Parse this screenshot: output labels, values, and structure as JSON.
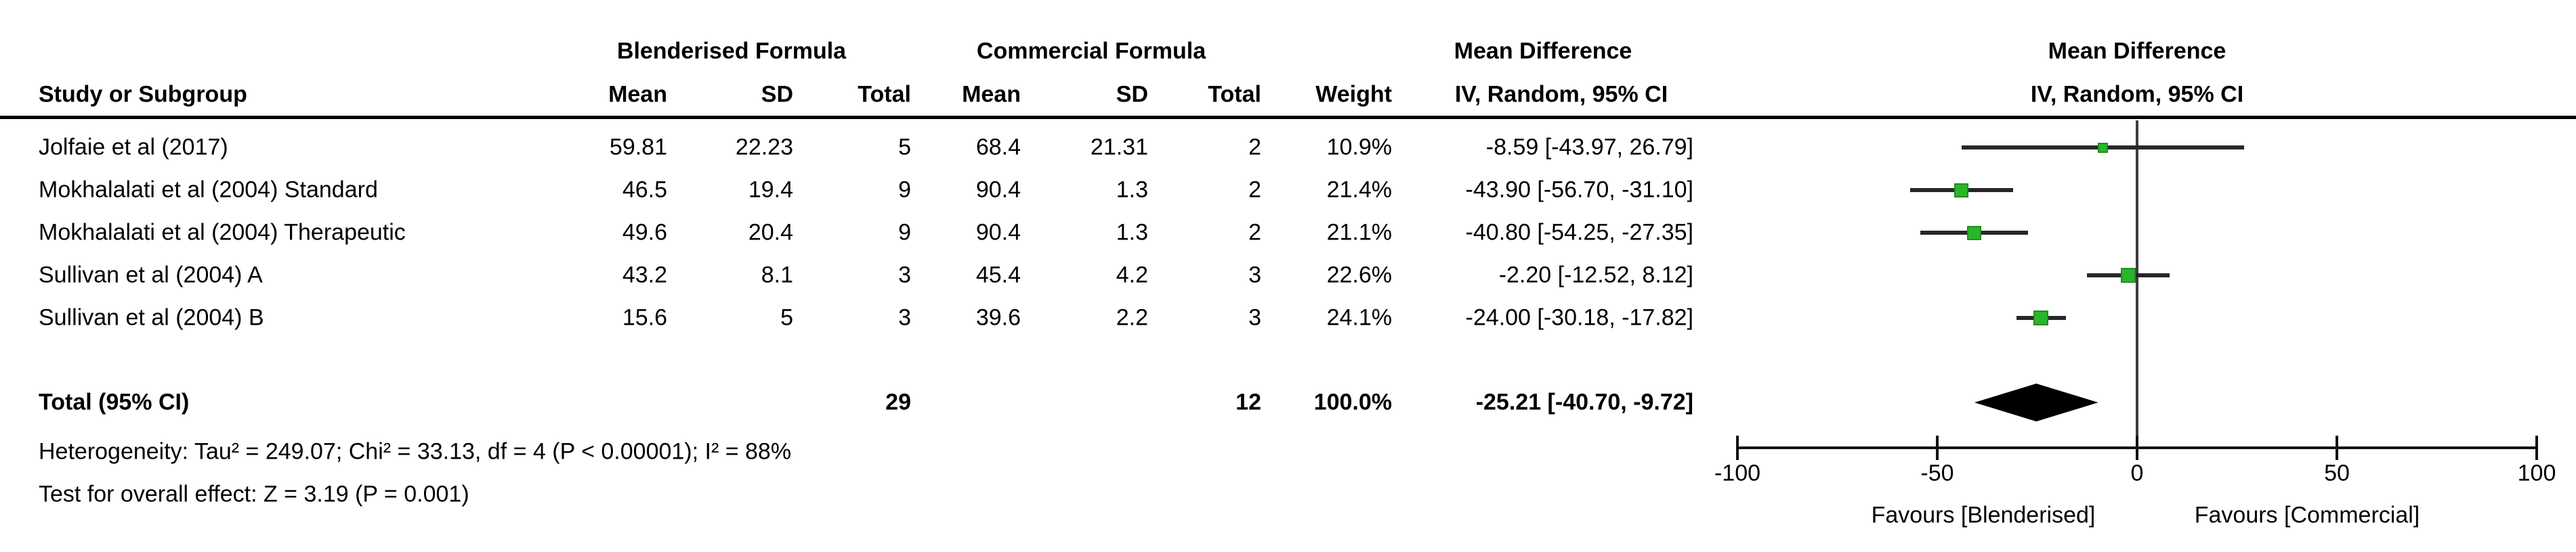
{
  "table": {
    "column_group_headers": {
      "group1": "Blenderised Formula",
      "group2": "Commercial Formula",
      "effect": "Mean Difference",
      "plot": "Mean Difference"
    },
    "column_headers": {
      "study": "Study or Subgroup",
      "mean1": "Mean",
      "sd1": "SD",
      "total1": "Total",
      "mean2": "Mean",
      "sd2": "SD",
      "total2": "Total",
      "weight": "Weight",
      "ci": "IV, Random, 95% CI",
      "plot_ci": "IV, Random, 95% CI"
    },
    "rows": [
      {
        "study": "Jolfaie et al (2017)",
        "mean1": "59.81",
        "sd1": "22.23",
        "total1": "5",
        "mean2": "68.4",
        "sd2": "21.31",
        "total2": "2",
        "weight": "10.9%",
        "ci": "-8.59 [-43.97, 26.79]"
      },
      {
        "study": "Mokhalalati et al (2004) Standard",
        "mean1": "46.5",
        "sd1": "19.4",
        "total1": "9",
        "mean2": "90.4",
        "sd2": "1.3",
        "total2": "2",
        "weight": "21.4%",
        "ci": "-43.90 [-56.70, -31.10]"
      },
      {
        "study": "Mokhalalati et al (2004) Therapeutic",
        "mean1": "49.6",
        "sd1": "20.4",
        "total1": "9",
        "mean2": "90.4",
        "sd2": "1.3",
        "total2": "2",
        "weight": "21.1%",
        "ci": "-40.80 [-54.25, -27.35]"
      },
      {
        "study": "Sullivan et al (2004) A",
        "mean1": "43.2",
        "sd1": "8.1",
        "total1": "3",
        "mean2": "45.4",
        "sd2": "4.2",
        "total2": "3",
        "weight": "22.6%",
        "ci": "-2.20 [-12.52, 8.12]"
      },
      {
        "study": "Sullivan et al (2004) B",
        "mean1": "15.6",
        "sd1": "5",
        "total1": "3",
        "mean2": "39.6",
        "sd2": "2.2",
        "total2": "3",
        "weight": "24.1%",
        "ci": "-24.00 [-30.18, -17.82]"
      }
    ],
    "total_row": {
      "study": "Total (95% CI)",
      "total1": "29",
      "total2": "12",
      "weight": "100.0%",
      "ci": "-25.21 [-40.70, -9.72]"
    },
    "footnotes": {
      "heterogeneity": "Heterogeneity: Tau² = 249.07; Chi² = 33.13, df = 4 (P < 0.00001); I² = 88%",
      "overall_effect": "Test for overall effect: Z = 3.19 (P = 0.001)"
    }
  },
  "chart_data": {
    "type": "forest",
    "title": "Mean Difference",
    "model": "IV, Random, 95% CI",
    "x_ticks": [
      -100,
      -50,
      0,
      50,
      100
    ],
    "x_tick_labels": [
      "-100",
      "-50",
      "0",
      "50",
      "100"
    ],
    "x_range": [
      -100,
      100
    ],
    "zero_line": 0,
    "favours_left": "Favours [Blenderised]",
    "favours_right": "Favours [Commercial]",
    "studies": [
      {
        "name": "Jolfaie et al (2017)",
        "md": -8.59,
        "lo": -43.97,
        "hi": 26.79,
        "weight_pct": 10.9
      },
      {
        "name": "Mokhalalati et al (2004) Standard",
        "md": -43.9,
        "lo": -56.7,
        "hi": -31.1,
        "weight_pct": 21.4
      },
      {
        "name": "Mokhalalati et al (2004) Therapeutic",
        "md": -40.8,
        "lo": -54.25,
        "hi": -27.35,
        "weight_pct": 21.1
      },
      {
        "name": "Sullivan et al (2004) A",
        "md": -2.2,
        "lo": -12.52,
        "hi": 8.12,
        "weight_pct": 22.6
      },
      {
        "name": "Sullivan et al (2004) B",
        "md": -24.0,
        "lo": -30.18,
        "hi": -17.82,
        "weight_pct": 24.1
      }
    ],
    "total": {
      "md": -25.21,
      "lo": -40.7,
      "hi": -9.72
    }
  },
  "colors": {
    "marker_green": "#2bb52b",
    "marker_green_border": "#1f8f1f",
    "diamond": "#000000",
    "zero_line": "#3d3d3d",
    "axis": "#111111",
    "text": "#000000"
  }
}
